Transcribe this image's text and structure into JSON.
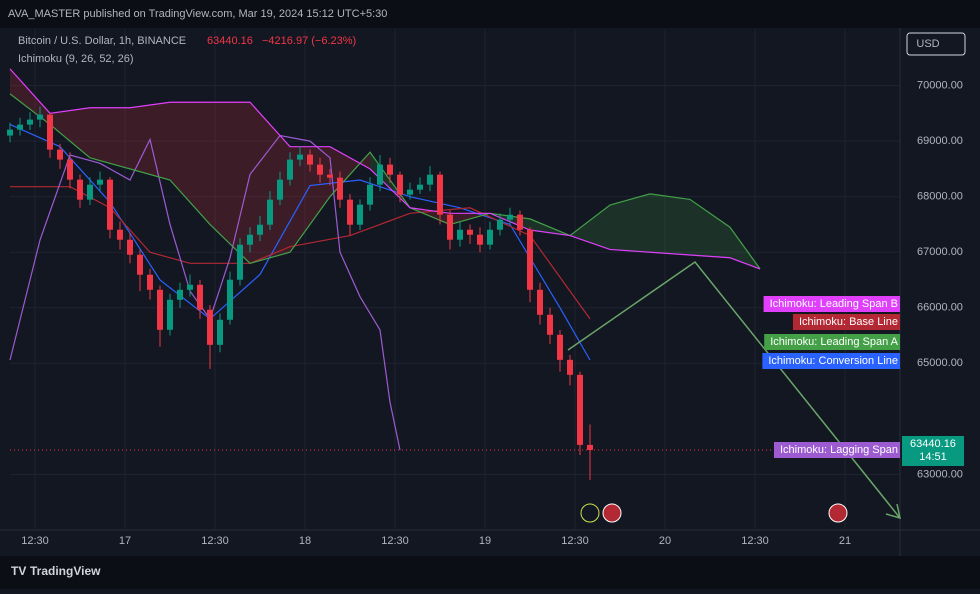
{
  "header": {
    "publisher": "AVA_MASTER published on TradingView.com, Mar 19, 2024 15:12 UTC+5:30"
  },
  "footer": {
    "brand": "TradingView"
  },
  "chart_data": {
    "type": "candlestick",
    "title": "Bitcoin / U.S. Dollar, 1h, BINANCE",
    "change": "−4216.97 (−6.23%)",
    "indicator": "Ichimoku (9, 26, 52, 26)",
    "currency": "USD",
    "countdown": "14:51",
    "up_color": "#089981",
    "down_color": "#f23645",
    "open": [
      69100,
      69207,
      69297,
      69387,
      69477,
      68847,
      68667,
      68306,
      67946,
      68216,
      68306,
      67405,
      67225,
      66955,
      66595,
      66324,
      65604,
      66144,
      66324,
      66414,
      65964,
      65333,
      65784,
      66505,
      67135,
      67315,
      67495,
      67946,
      68306,
      68667,
      68757,
      68577,
      68396,
      68342,
      67946,
      67495,
      67856,
      68216,
      68577,
      68396,
      68036,
      68126,
      68216,
      68396,
      67676,
      67225,
      67405,
      67315,
      67135,
      67405,
      67586,
      67676,
      67405,
      66324,
      65874,
      65514,
      65063,
      64793,
      63532
    ],
    "high": [
      69330,
      69420,
      69520,
      69620,
      69500,
      68950,
      68800,
      68400,
      68350,
      68450,
      68350,
      67550,
      67350,
      67050,
      66700,
      66400,
      66250,
      66450,
      66600,
      66500,
      66050,
      65900,
      66650,
      67250,
      67450,
      67650,
      68100,
      68450,
      68800,
      68900,
      68850,
      68700,
      68500,
      68450,
      68050,
      67950,
      68350,
      68750,
      68700,
      68450,
      68250,
      68350,
      68550,
      68450,
      67750,
      67550,
      67500,
      67450,
      67550,
      67700,
      67800,
      67750,
      67450,
      66450,
      66000,
      65600,
      65150,
      64850,
      63900
    ],
    "low": [
      68980,
      69100,
      69200,
      69250,
      68700,
      68500,
      68150,
      67800,
      67850,
      68100,
      67250,
      67050,
      66800,
      66300,
      66150,
      65300,
      65500,
      66000,
      66200,
      65800,
      64900,
      65200,
      65700,
      66400,
      67000,
      67200,
      67400,
      67850,
      68200,
      68550,
      68450,
      68250,
      68200,
      67800,
      67300,
      67400,
      67750,
      68100,
      68250,
      67900,
      67950,
      68050,
      68100,
      67500,
      67050,
      67100,
      67150,
      67000,
      67050,
      67300,
      67500,
      67300,
      66100,
      65700,
      65350,
      64850,
      64600,
      63350,
      62900
    ],
    "close": [
      69207,
      69297,
      69387,
      69477,
      68847,
      68667,
      68306,
      67946,
      68216,
      68306,
      67405,
      67225,
      66955,
      66595,
      66324,
      65604,
      66144,
      66324,
      66414,
      65964,
      65333,
      65784,
      66505,
      67135,
      67315,
      67495,
      67946,
      68306,
      68667,
      68757,
      68577,
      68396,
      68342,
      67946,
      67495,
      67856,
      68216,
      68577,
      68396,
      68036,
      68126,
      68216,
      68396,
      67676,
      67225,
      67405,
      67315,
      67135,
      67405,
      67586,
      67676,
      67405,
      66324,
      65874,
      65514,
      65063,
      64793,
      63532,
      63440.16
    ],
    "indicators": [
      {
        "name": "Ichimoku: Conversion Line",
        "color": "#2962ff",
        "x": [
          0,
          5,
          10,
          15,
          20,
          25,
          30,
          35,
          40,
          45,
          50,
          55,
          58
        ],
        "values": [
          69300,
          68900,
          67900,
          66500,
          65800,
          66600,
          68200,
          68300,
          68000,
          67800,
          67500,
          66000,
          65060
        ]
      },
      {
        "name": "Ichimoku: Base Line",
        "color": "#b22833",
        "x": [
          0,
          6,
          10,
          14,
          18,
          24,
          28,
          34,
          40,
          46,
          52,
          58
        ],
        "values": [
          68180,
          68180,
          67800,
          67000,
          66800,
          66800,
          67100,
          67300,
          67700,
          67800,
          67300,
          65800
        ]
      },
      {
        "name": "Ichimoku: Lagging Span",
        "color": "#9c5bd0",
        "x": [
          0,
          3,
          6,
          9,
          12,
          14,
          16,
          18,
          20,
          22,
          24,
          27,
          30,
          32,
          33,
          35,
          37,
          38,
          39
        ],
        "values": [
          65060,
          67220,
          68750,
          68600,
          68300,
          69030,
          67500,
          66300,
          65800,
          66900,
          68400,
          69100,
          69000,
          68700,
          67000,
          66200,
          65600,
          64300,
          63440
        ]
      },
      {
        "name": "Ichimoku: Leading Span A",
        "color": "#43a047",
        "x": [
          0,
          4,
          8,
          12,
          16,
          20,
          24,
          28,
          32,
          36,
          40,
          44,
          48,
          52,
          56,
          60,
          64,
          68,
          72,
          75
        ],
        "values": [
          69850,
          69300,
          68700,
          68500,
          68300,
          67500,
          66800,
          67000,
          68000,
          68800,
          67800,
          67500,
          67700,
          67600,
          67300,
          67850,
          68050,
          67950,
          67450,
          66700
        ]
      },
      {
        "name": "Ichimoku: Leading Span B",
        "color": "#e040fb",
        "x": [
          0,
          4,
          8,
          12,
          16,
          20,
          24,
          28,
          32,
          36,
          40,
          44,
          48,
          52,
          56,
          60,
          64,
          68,
          72,
          75
        ],
        "values": [
          70300,
          69500,
          69600,
          69600,
          69700,
          69700,
          69700,
          68900,
          68900,
          68500,
          67800,
          67700,
          67700,
          67400,
          67300,
          67050,
          67000,
          66950,
          66900,
          66700
        ]
      }
    ],
    "xlim": [
      0,
      89
    ],
    "xticks": [
      {
        "value": 2.5,
        "label": "12:30"
      },
      {
        "value": 11.5,
        "label": "17"
      },
      {
        "value": 20.5,
        "label": "12:30"
      },
      {
        "value": 29.5,
        "label": "18"
      },
      {
        "value": 38.5,
        "label": "12:30"
      },
      {
        "value": 47.5,
        "label": "19"
      },
      {
        "value": 56.5,
        "label": "12:30"
      },
      {
        "value": 65.5,
        "label": "20"
      },
      {
        "value": 74.5,
        "label": "12:30"
      },
      {
        "value": 83.5,
        "label": "21"
      }
    ],
    "ylim": [
      62000,
      71000
    ],
    "yticks": [
      {
        "value": 63000,
        "label": "63000.00"
      },
      {
        "value": 65000,
        "label": "65000.00"
      },
      {
        "value": 66000,
        "label": "66000.00"
      },
      {
        "value": 67000,
        "label": "67000.00"
      },
      {
        "value": 68000,
        "label": "68000.00"
      },
      {
        "value": 69000,
        "label": "69000.00"
      },
      {
        "value": 70000,
        "label": "70000.00"
      }
    ],
    "grid": true
  }
}
